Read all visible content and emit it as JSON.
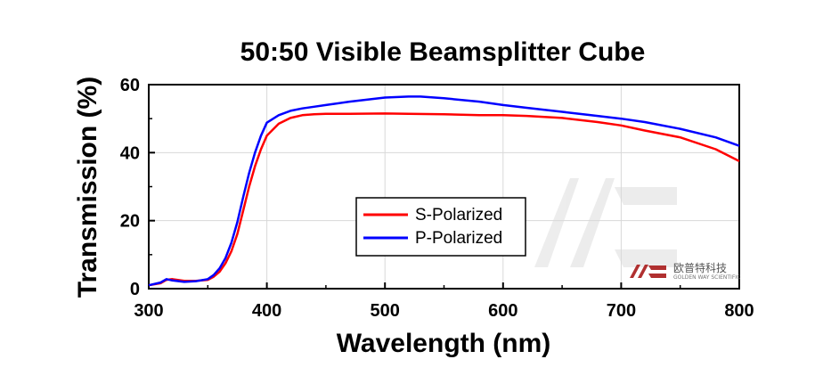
{
  "chart_data": {
    "type": "line",
    "title": "50:50 Visible Beamsplitter Cube",
    "xlabel": "Wavelength (nm)",
    "ylabel": "Transmission (%)",
    "xlim": [
      300,
      800
    ],
    "ylim": [
      0,
      60
    ],
    "xticks": [
      300,
      400,
      500,
      600,
      700,
      800
    ],
    "yticks": [
      0,
      20,
      40,
      60
    ],
    "grid": true,
    "legend_position": "center",
    "series": [
      {
        "name": "S-Polarized",
        "color": "#ff0000",
        "x": [
          300,
          310,
          315,
          320,
          330,
          340,
          350,
          355,
          360,
          365,
          370,
          375,
          380,
          385,
          390,
          395,
          400,
          410,
          420,
          430,
          440,
          450,
          470,
          500,
          520,
          550,
          580,
          600,
          620,
          650,
          680,
          700,
          720,
          750,
          780,
          800
        ],
        "y": [
          1.0,
          1.6,
          2.6,
          2.8,
          2.3,
          2.3,
          2.6,
          3.5,
          5.0,
          7.5,
          11.0,
          16.0,
          23.0,
          30.0,
          36.0,
          41.0,
          45.0,
          48.5,
          50.2,
          51.0,
          51.3,
          51.4,
          51.4,
          51.5,
          51.4,
          51.3,
          51.0,
          51.0,
          50.8,
          50.2,
          49.0,
          48.0,
          46.5,
          44.5,
          41.0,
          37.5
        ]
      },
      {
        "name": "P-Polarized",
        "color": "#0000ff",
        "x": [
          300,
          310,
          315,
          320,
          330,
          340,
          350,
          355,
          360,
          365,
          370,
          375,
          380,
          385,
          390,
          395,
          400,
          410,
          420,
          430,
          440,
          450,
          470,
          500,
          520,
          530,
          550,
          580,
          600,
          620,
          650,
          680,
          700,
          720,
          750,
          780,
          800
        ],
        "y": [
          1.0,
          1.8,
          2.8,
          2.4,
          2.0,
          2.2,
          2.8,
          4.0,
          6.0,
          9.0,
          13.5,
          19.5,
          27.0,
          34.0,
          40.0,
          45.0,
          48.8,
          51.0,
          52.3,
          53.0,
          53.5,
          54.0,
          55.0,
          56.2,
          56.5,
          56.5,
          56.0,
          55.0,
          54.0,
          53.2,
          52.0,
          50.8,
          50.0,
          49.0,
          47.0,
          44.5,
          42.0
        ]
      }
    ]
  },
  "watermark": {
    "brand_cn": "欧普特科技",
    "brand_en": "GOLDEN WAY SCIENTIFIC",
    "color": "#b03030"
  }
}
